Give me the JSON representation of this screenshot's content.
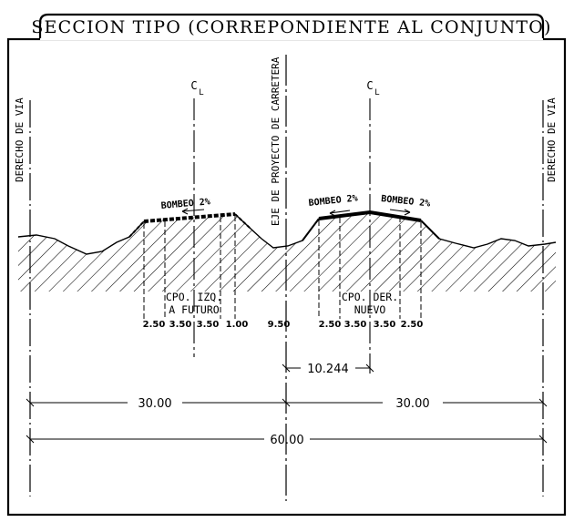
{
  "title": "SECCION TIPO (CORREPONDIENTE AL CONJUNTO)",
  "labels": {
    "row_left": "DERECHO DE VIA",
    "row_right": "DERECHO DE VIA",
    "axis_project": "EJE DE PROYECTO DE CARRETERA",
    "centerline_left": "C",
    "centerline_left_sub": "L",
    "centerline_right": "C",
    "centerline_right_sub": "L",
    "bombeo_left": "BOMBEO 2%",
    "bombeo_right_a": "BOMBEO 2%",
    "bombeo_right_b": "BOMBEO 2%",
    "body_left_line1": "CPO. IZQ.",
    "body_left_line2": "A FUTURO",
    "body_right_line1": "CPO. DER.",
    "body_right_line2": "NUEVO"
  },
  "widths_left": [
    "2.50",
    "3.50",
    "3.50",
    "1.00"
  ],
  "median": "9.50",
  "widths_right": [
    "2.50",
    "3.50",
    "3.50",
    "2.50"
  ],
  "dimensions": {
    "offset": "10.244",
    "half_left": "30.00",
    "half_right": "30.00",
    "total": "60.00"
  }
}
